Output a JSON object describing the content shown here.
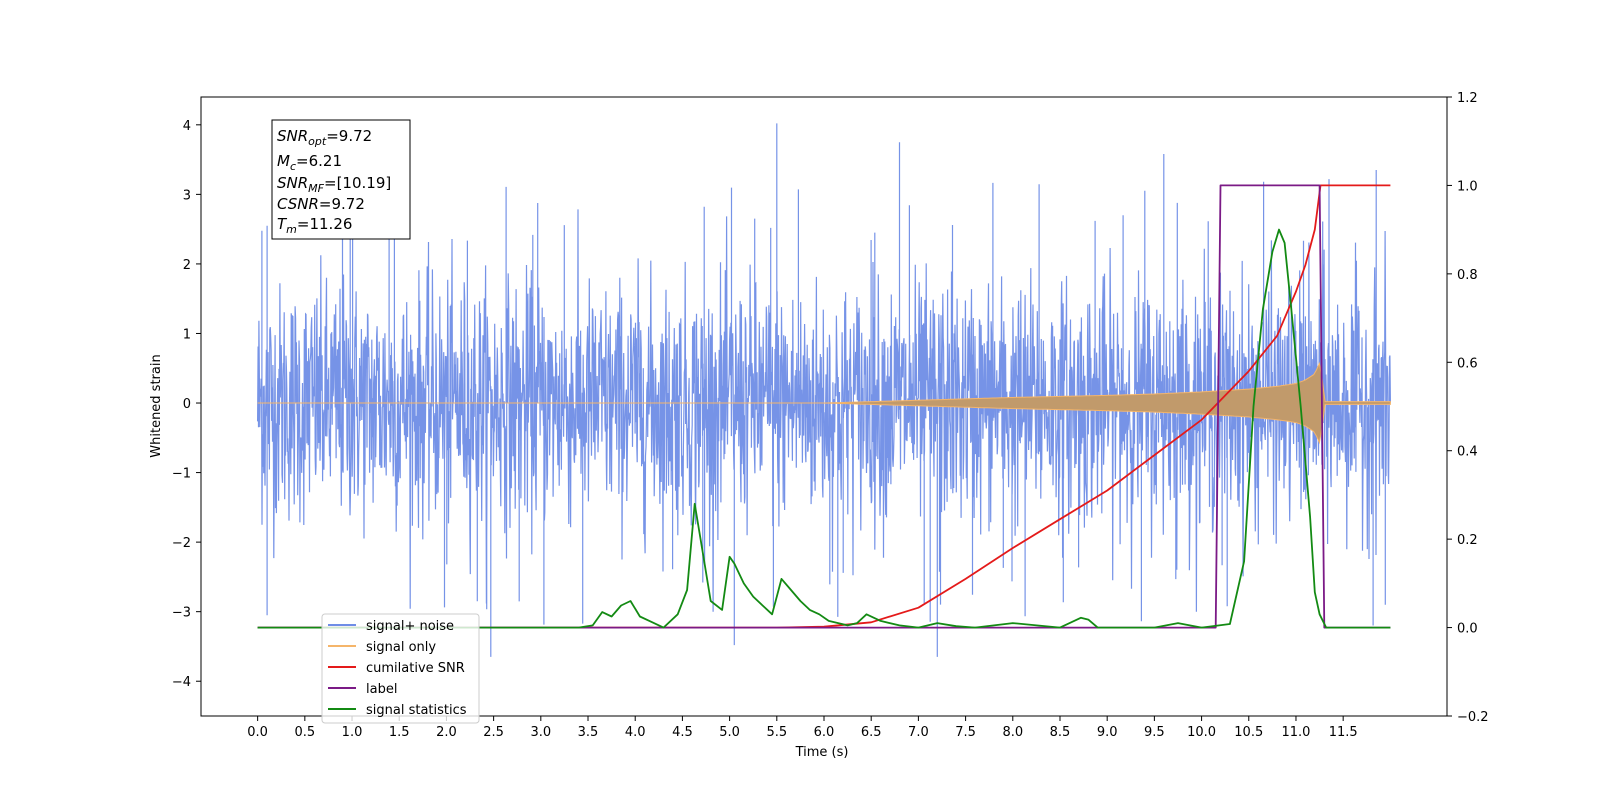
{
  "chart_data": {
    "type": "line",
    "title": "",
    "xlabel": "Time (s)",
    "ylabel": "Whitened strain",
    "ylabel_right": "",
    "xlim": [
      -0.6,
      12.6
    ],
    "ylim": [
      -4.5,
      4.4
    ],
    "ylim_right": [
      -0.2,
      1.2
    ],
    "x_ticks": [
      "0.0",
      "0.5",
      "1.0",
      "1.5",
      "2.0",
      "2.5",
      "3.0",
      "3.5",
      "4.0",
      "4.5",
      "5.0",
      "5.5",
      "6.0",
      "6.5",
      "7.0",
      "7.5",
      "8.0",
      "8.5",
      "9.0",
      "9.5",
      "10.0",
      "10.5",
      "11.0",
      "11.5"
    ],
    "y_ticks": [
      "4",
      "3",
      "2",
      "1",
      "0",
      "−1",
      "−2",
      "−3",
      "−4"
    ],
    "y_ticks_right": [
      "1.2",
      "1.0",
      "0.8",
      "0.6",
      "0.4",
      "0.2",
      "0.0",
      "−0.2"
    ],
    "grid": false,
    "legend_position": "lower-left",
    "info_box": {
      "snr_opt": {
        "sym": "SNR",
        "sub": "opt",
        "rest": "=9.72"
      },
      "mc": {
        "sym": "M",
        "sub": "c",
        "rest": "=6.21"
      },
      "snr_mf": {
        "sym": "SNR",
        "sub": "MF",
        "rest": "=[10.19]"
      },
      "csnr": {
        "sym": "CSNR",
        "sub": "",
        "rest": "=9.72"
      },
      "tm": {
        "sym": "T",
        "sub": "m",
        "rest": "=11.26"
      }
    },
    "series": [
      {
        "name": "signal+ noise",
        "color": "#6f8de6",
        "axis": "left",
        "description_values": {
          "typical_range": [
            -1.6,
            1.6
          ],
          "peaks": [
            {
              "x": 0.1,
              "y": -3.05
            },
            {
              "x": 0.1,
              "y": 2.55
            },
            {
              "x": 2.47,
              "y": -3.65
            },
            {
              "x": 5.5,
              "y": 4.02
            },
            {
              "x": 5.05,
              "y": -3.48
            },
            {
              "x": 6.8,
              "y": 3.75
            },
            {
              "x": 7.2,
              "y": -3.65
            },
            {
              "x": 9.6,
              "y": 3.58
            },
            {
              "x": 11.35,
              "y": 3.22
            },
            {
              "x": 11.85,
              "y": 3.35
            }
          ],
          "x_range": [
            0.0,
            12.0
          ]
        }
      },
      {
        "name": "signal only",
        "color": "#f5b56a",
        "axis": "left",
        "envelope": {
          "x": [
            0,
            6.0,
            7.0,
            8.0,
            9.0,
            9.5,
            10.0,
            10.5,
            10.8,
            11.0,
            11.1,
            11.2,
            11.24,
            11.26,
            11.3,
            12.0
          ],
          "amp": [
            0.0,
            0.0,
            0.04,
            0.08,
            0.11,
            0.13,
            0.16,
            0.2,
            0.24,
            0.28,
            0.33,
            0.42,
            0.55,
            0.6,
            0.02,
            0.02
          ]
        }
      },
      {
        "name": "cumilative SNR",
        "color": "#e41a1a",
        "axis": "right",
        "x": [
          0,
          5.5,
          6.0,
          6.5,
          7.0,
          7.5,
          8.0,
          8.5,
          9.0,
          9.5,
          10.0,
          10.5,
          10.8,
          11.0,
          11.1,
          11.2,
          11.26,
          12.0
        ],
        "y": [
          0.0,
          0.0,
          0.002,
          0.012,
          0.045,
          0.11,
          0.18,
          0.245,
          0.31,
          0.39,
          0.47,
          0.58,
          0.66,
          0.76,
          0.82,
          0.9,
          1.0,
          1.0
        ]
      },
      {
        "name": "label",
        "color": "#7b1a86",
        "axis": "right",
        "x": [
          0,
          10.15,
          10.2,
          11.25,
          11.3,
          12.0
        ],
        "y": [
          0.0,
          0.0,
          1.0,
          1.0,
          0.0,
          0.0
        ]
      },
      {
        "name": "signal statistics",
        "color": "#138a13",
        "axis": "right",
        "x": [
          0,
          3.4,
          3.55,
          3.65,
          3.75,
          3.85,
          3.95,
          4.05,
          4.15,
          4.3,
          4.45,
          4.55,
          4.63,
          4.7,
          4.8,
          4.92,
          5.0,
          5.05,
          5.15,
          5.25,
          5.35,
          5.45,
          5.55,
          5.65,
          5.75,
          5.85,
          5.95,
          6.05,
          6.15,
          6.25,
          6.35,
          6.45,
          6.6,
          6.8,
          7.0,
          7.2,
          7.4,
          7.6,
          8.0,
          8.5,
          8.72,
          8.8,
          8.9,
          9.5,
          9.75,
          10.0,
          10.3,
          10.45,
          10.55,
          10.65,
          10.75,
          10.82,
          10.88,
          10.95,
          11.05,
          11.15,
          11.2,
          11.25,
          11.32,
          11.4,
          11.5,
          12.0
        ],
        "y": [
          0.0,
          0.0,
          0.005,
          0.035,
          0.025,
          0.05,
          0.06,
          0.025,
          0.015,
          0.0,
          0.03,
          0.085,
          0.28,
          0.19,
          0.06,
          0.04,
          0.16,
          0.145,
          0.1,
          0.07,
          0.05,
          0.03,
          0.11,
          0.085,
          0.06,
          0.04,
          0.03,
          0.015,
          0.01,
          0.005,
          0.01,
          0.03,
          0.015,
          0.005,
          0.0,
          0.01,
          0.003,
          0.0,
          0.01,
          0.0,
          0.022,
          0.018,
          0.0,
          0.0,
          0.01,
          0.0,
          0.008,
          0.15,
          0.5,
          0.72,
          0.85,
          0.9,
          0.87,
          0.72,
          0.5,
          0.25,
          0.08,
          0.03,
          0.0,
          0.0,
          0.0,
          0.0
        ]
      }
    ]
  }
}
